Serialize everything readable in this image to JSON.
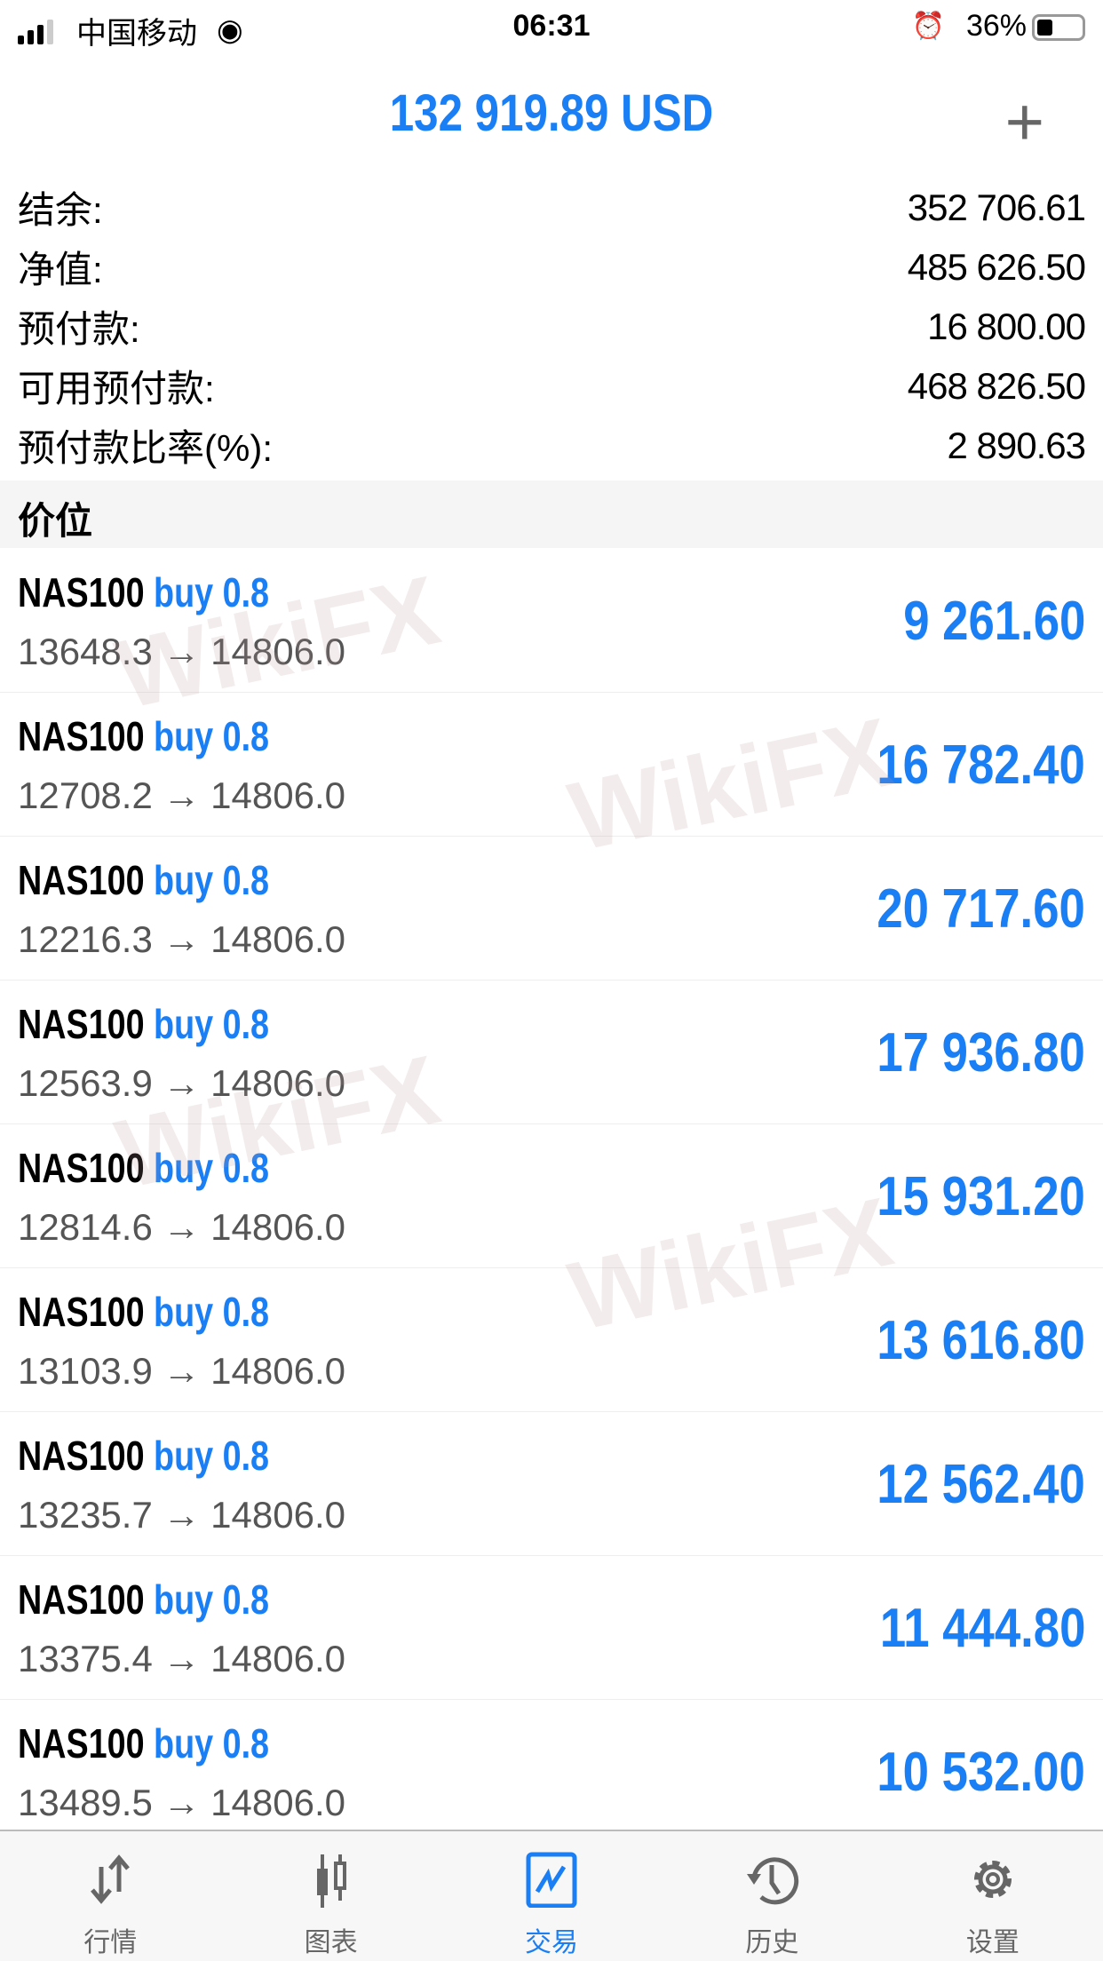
{
  "status_bar": {
    "carrier": "中国移动",
    "time": "06:31",
    "battery": "36%",
    "battery_level": 36
  },
  "header": {
    "title": "132 919.89 USD",
    "add_icon": "plus-icon"
  },
  "summary": [
    {
      "label": "结余:",
      "value": "352 706.61"
    },
    {
      "label": "净值:",
      "value": "485 626.50"
    },
    {
      "label": "预付款:",
      "value": "16 800.00"
    },
    {
      "label": "可用预付款:",
      "value": "468 826.50"
    },
    {
      "label": "预付款比率(%):",
      "value": "2 890.63"
    }
  ],
  "section_title": "价位",
  "positions": [
    {
      "symbol": "NAS100",
      "side": "buy 0.8",
      "prices": "13648.3 → 14806.0",
      "profit": "9 261.60"
    },
    {
      "symbol": "NAS100",
      "side": "buy 0.8",
      "prices": "12708.2 → 14806.0",
      "profit": "16 782.40"
    },
    {
      "symbol": "NAS100",
      "side": "buy 0.8",
      "prices": "12216.3 → 14806.0",
      "profit": "20 717.60"
    },
    {
      "symbol": "NAS100",
      "side": "buy 0.8",
      "prices": "12563.9 → 14806.0",
      "profit": "17 936.80"
    },
    {
      "symbol": "NAS100",
      "side": "buy 0.8",
      "prices": "12814.6 → 14806.0",
      "profit": "15 931.20"
    },
    {
      "symbol": "NAS100",
      "side": "buy 0.8",
      "prices": "13103.9 → 14806.0",
      "profit": "13 616.80"
    },
    {
      "symbol": "NAS100",
      "side": "buy 0.8",
      "prices": "13235.7 → 14806.0",
      "profit": "12 562.40"
    },
    {
      "symbol": "NAS100",
      "side": "buy 0.8",
      "prices": "13375.4 → 14806.0",
      "profit": "11 444.80"
    },
    {
      "symbol": "NAS100",
      "side": "buy 0.8",
      "prices": "13489.5 → 14806.0",
      "profit": "10 532.00"
    }
  ],
  "watermark": "WikiFX",
  "tabs": [
    {
      "label": "行情",
      "icon": "quotes-arrows-icon"
    },
    {
      "label": "图表",
      "icon": "candlestick-chart-icon"
    },
    {
      "label": "交易",
      "icon": "trade-chart-icon",
      "active": true
    },
    {
      "label": "历史",
      "icon": "history-clock-icon"
    },
    {
      "label": "设置",
      "icon": "gear-icon"
    }
  ],
  "colors": {
    "accent": "#1a7ef5",
    "inactive": "#666666"
  }
}
